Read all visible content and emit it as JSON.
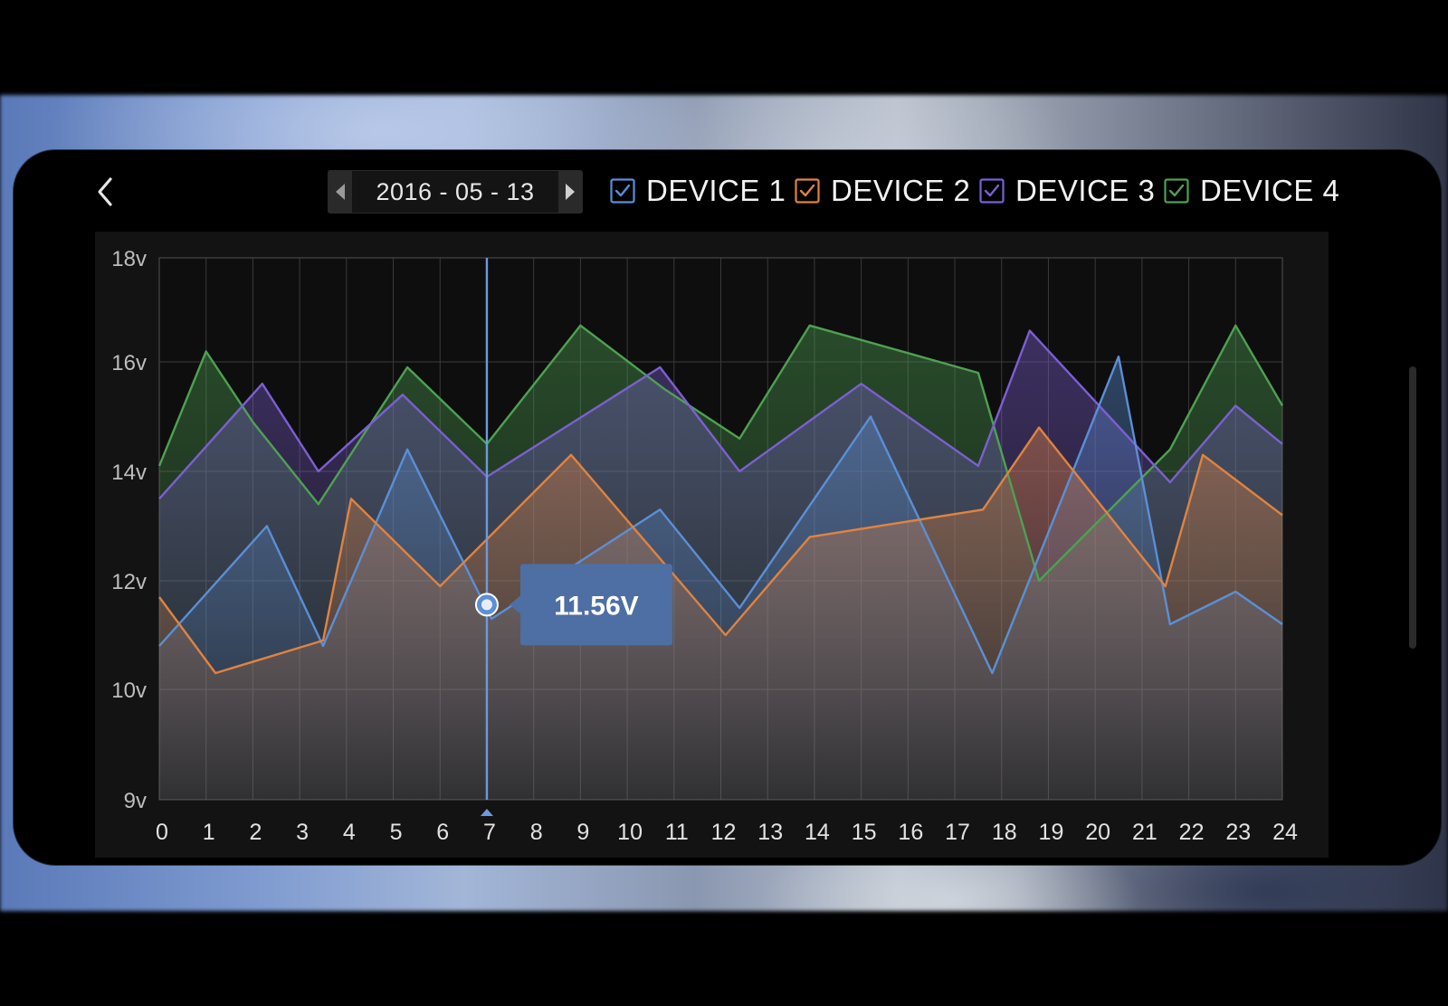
{
  "header": {
    "date": "2016 - 05 - 13",
    "prev_label": "previous day",
    "next_label": "next day"
  },
  "legend": [
    {
      "label": "DEVICE 1",
      "color": "#5b8fd6",
      "checked": true
    },
    {
      "label": "DEVICE 2",
      "color": "#e08340",
      "checked": true
    },
    {
      "label": "DEVICE 3",
      "color": "#7c5fd1",
      "checked": true
    },
    {
      "label": "DEVICE 4",
      "color": "#4ea152",
      "checked": true
    }
  ],
  "tooltip": {
    "value_label": "11.56V",
    "hour": 7,
    "value": 11.56
  },
  "chart_data": {
    "type": "area",
    "title": "",
    "xlabel": "",
    "ylabel": "",
    "x": [
      0,
      1,
      2,
      3,
      4,
      5,
      6,
      7,
      8,
      9,
      10,
      11,
      12,
      13,
      14,
      15,
      16,
      17,
      18,
      19,
      20,
      21,
      22,
      23,
      24
    ],
    "x_tick_labels": [
      "0",
      "1",
      "2",
      "3",
      "4",
      "5",
      "6",
      "7",
      "8",
      "9",
      "10",
      "11",
      "12",
      "13",
      "14",
      "15",
      "16",
      "17",
      "18",
      "19",
      "20",
      "21",
      "22",
      "23",
      "24"
    ],
    "y_ticks": [
      {
        "value": 9,
        "label": "9v"
      },
      {
        "value": 10,
        "label": "10v"
      },
      {
        "value": 12,
        "label": "12v"
      },
      {
        "value": 14,
        "label": "14v"
      },
      {
        "value": 16,
        "label": "16v"
      },
      {
        "value": 18,
        "label": "18v"
      }
    ],
    "ylim": [
      9,
      18
    ],
    "grid": true,
    "selected_x": 7,
    "series": [
      {
        "name": "DEVICE 4",
        "color": "#4ea152",
        "points": [
          [
            0,
            14.1
          ],
          [
            1,
            16.2
          ],
          [
            2,
            14.9
          ],
          [
            3.4,
            13.4
          ],
          [
            5.3,
            15.9
          ],
          [
            7,
            14.5
          ],
          [
            9,
            16.7
          ],
          [
            10.8,
            15.5
          ],
          [
            12.4,
            14.6
          ],
          [
            13.9,
            16.7
          ],
          [
            17.5,
            15.8
          ],
          [
            18.8,
            12.0
          ],
          [
            21.6,
            14.4
          ],
          [
            23,
            16.7
          ],
          [
            24,
            15.2
          ]
        ]
      },
      {
        "name": "DEVICE 3",
        "color": "#7c5fd1",
        "points": [
          [
            0,
            13.5
          ],
          [
            2.2,
            15.6
          ],
          [
            3.4,
            14.0
          ],
          [
            5.2,
            15.4
          ],
          [
            7,
            13.9
          ],
          [
            10.7,
            15.9
          ],
          [
            12.4,
            14.0
          ],
          [
            15,
            15.6
          ],
          [
            17.5,
            14.1
          ],
          [
            18.6,
            16.6
          ],
          [
            21.6,
            13.8
          ],
          [
            23,
            15.2
          ],
          [
            24,
            14.5
          ]
        ]
      },
      {
        "name": "DEVICE 1",
        "color": "#5b8fd6",
        "points": [
          [
            0,
            10.8
          ],
          [
            2.3,
            13.0
          ],
          [
            3.5,
            10.8
          ],
          [
            5.3,
            14.4
          ],
          [
            7.1,
            11.3
          ],
          [
            10.7,
            13.3
          ],
          [
            12.4,
            11.5
          ],
          [
            15.2,
            15.0
          ],
          [
            17.8,
            10.3
          ],
          [
            20.5,
            16.1
          ],
          [
            21.6,
            11.2
          ],
          [
            23,
            11.8
          ],
          [
            24,
            11.2
          ]
        ]
      },
      {
        "name": "DEVICE 2",
        "color": "#e08340",
        "points": [
          [
            0,
            11.7
          ],
          [
            1.2,
            10.3
          ],
          [
            3.5,
            10.9
          ],
          [
            4.1,
            13.5
          ],
          [
            6,
            11.9
          ],
          [
            8.8,
            14.3
          ],
          [
            12.1,
            11.0
          ],
          [
            13.9,
            12.8
          ],
          [
            17.6,
            13.3
          ],
          [
            18.8,
            14.8
          ],
          [
            21.5,
            11.9
          ],
          [
            22.3,
            14.3
          ],
          [
            24,
            13.2
          ]
        ]
      }
    ]
  }
}
